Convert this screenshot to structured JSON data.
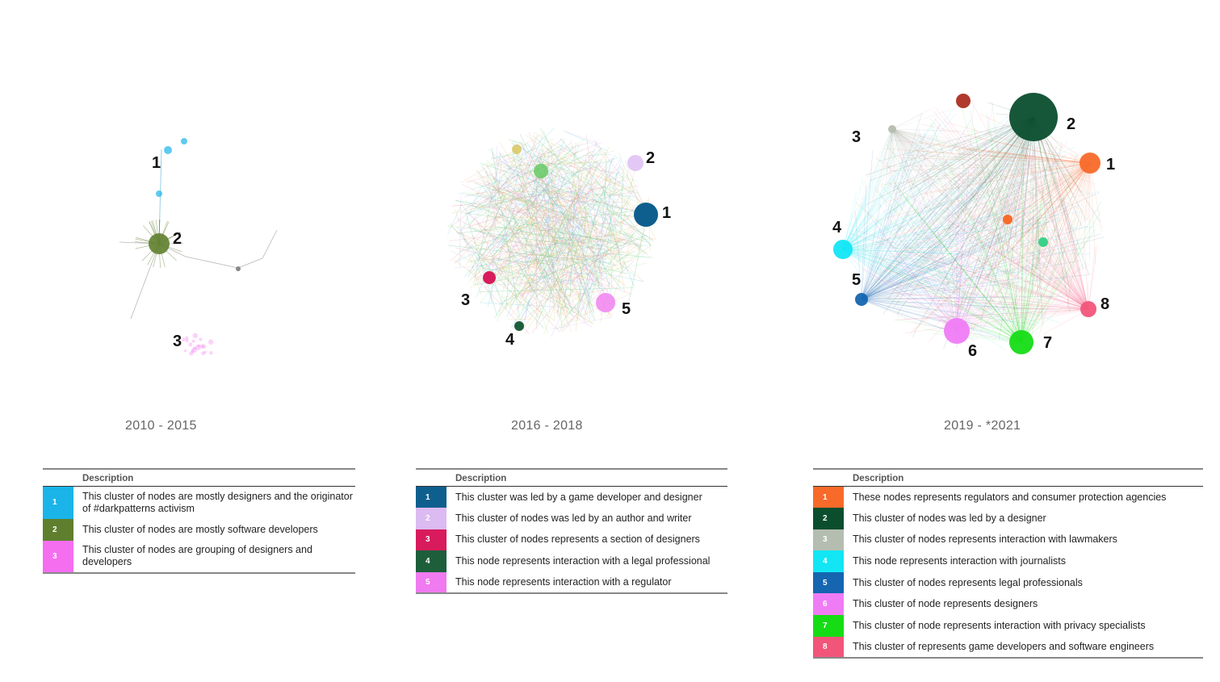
{
  "panels": [
    {
      "period": "2010 - 2015",
      "labels": [
        "1",
        "2",
        "3"
      ],
      "table": {
        "header": "Description",
        "rows": [
          {
            "num": "1",
            "color": "#1ab4e8",
            "text": "This cluster of nodes are mostly designers and the originator of #darkpatterns activism"
          },
          {
            "num": "2",
            "color": "#5f7f2e",
            "text": "This cluster of nodes are mostly software developers"
          },
          {
            "num": "3",
            "color": "#f56ef0",
            "text": "This cluster of nodes are grouping of designers and developers"
          }
        ]
      }
    },
    {
      "period": "2016 - 2018",
      "labels": [
        "1",
        "2",
        "3",
        "4",
        "5"
      ],
      "table": {
        "header": "Description",
        "rows": [
          {
            "num": "1",
            "color": "#0f5f8e",
            "text": "This cluster was led by a game developer and designer"
          },
          {
            "num": "2",
            "color": "#dcbaf2",
            "text": "This cluster of nodes was led by an author and writer"
          },
          {
            "num": "3",
            "color": "#d81b5c",
            "text": "This cluster of nodes represents a section of designers"
          },
          {
            "num": "4",
            "color": "#1d5e3b",
            "text": "This node represents interaction with a legal professional"
          },
          {
            "num": "5",
            "color": "#f07af0",
            "text": "This node represents interaction with a regulator"
          }
        ]
      }
    },
    {
      "period": "2019 - *2021",
      "labels": [
        "1",
        "2",
        "3",
        "4",
        "5",
        "6",
        "7",
        "8"
      ],
      "table": {
        "header": "Description",
        "rows": [
          {
            "num": "1",
            "color": "#f86a2a",
            "text": "These nodes represents regulators and consumer protection agencies"
          },
          {
            "num": "2",
            "color": "#0b4e2e",
            "text": "This cluster of nodes was led by a designer"
          },
          {
            "num": "3",
            "color": "#b5bdb0",
            "text": "This cluster of nodes represents interaction with lawmakers"
          },
          {
            "num": "4",
            "color": "#12e6f5",
            "text": "This node represents interaction with journalists"
          },
          {
            "num": "5",
            "color": "#1565b0",
            "text": "This cluster of nodes represents legal professionals"
          },
          {
            "num": "6",
            "color": "#f07cf5",
            "text": "This cluster of node represents designers"
          },
          {
            "num": "7",
            "color": "#16dc16",
            "text": "This cluster of node represents interaction with privacy specialists"
          },
          {
            "num": "8",
            "color": "#f2557a",
            "text": "This cluster of represents game developers and software engineers"
          }
        ]
      }
    }
  ]
}
